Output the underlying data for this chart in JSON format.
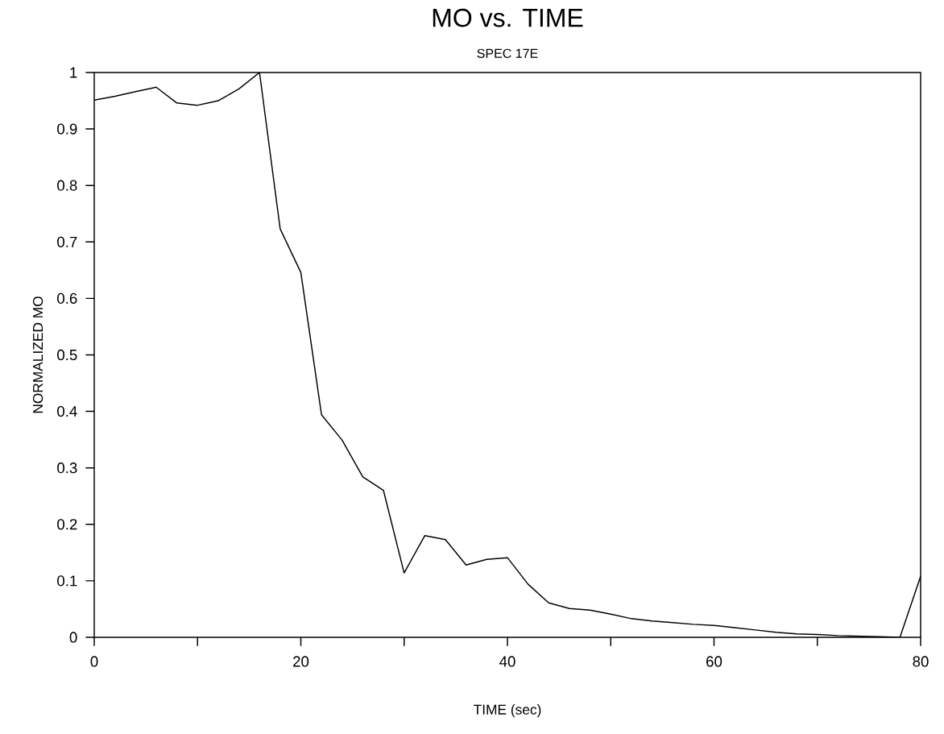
{
  "chart_data": {
    "type": "line",
    "title": "MO vs. TIME",
    "subtitle": "SPEC 17E",
    "xlabel": "TIME (sec)",
    "ylabel": "NORMALIZED MO",
    "x": [
      0,
      2,
      4,
      6,
      8,
      10,
      12,
      14,
      16,
      18,
      20,
      22,
      24,
      26,
      28,
      30,
      32,
      34,
      36,
      38,
      40,
      42,
      44,
      46,
      48,
      50,
      52,
      54,
      56,
      58,
      60,
      62,
      64,
      66,
      68,
      70,
      72,
      74,
      76,
      78,
      80
    ],
    "series": [
      {
        "color": "#000000",
        "values": [
          0.951,
          0.958,
          0.966,
          0.974,
          0.946,
          0.942,
          0.95,
          0.971,
          1.0,
          0.723,
          0.646,
          0.394,
          0.349,
          0.284,
          0.26,
          0.114,
          0.18,
          0.173,
          0.128,
          0.138,
          0.141,
          0.094,
          0.061,
          0.051,
          0.048,
          0.041,
          0.033,
          0.029,
          0.026,
          0.023,
          0.021,
          0.017,
          0.013,
          0.009,
          0.006,
          0.005,
          0.003,
          0.002,
          0.001,
          0.0,
          0.108
        ]
      }
    ],
    "xlim": [
      0,
      80
    ],
    "ylim": [
      0,
      1
    ],
    "xticks": [
      0,
      {
        "value": 10,
        "label": null
      },
      20,
      {
        "value": 30,
        "label": null
      },
      40,
      {
        "value": 50,
        "label": null
      },
      60,
      {
        "value": 70,
        "label": null
      },
      80
    ],
    "yticks": [
      0,
      0.1,
      0.2,
      0.3,
      0.4,
      0.5,
      0.6,
      0.7,
      0.8,
      0.9,
      1
    ],
    "grid": false,
    "marker": "none",
    "line_style": "solid"
  }
}
